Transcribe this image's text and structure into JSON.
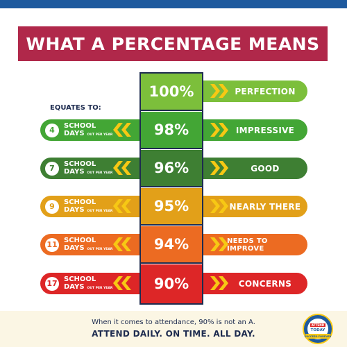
{
  "title": "WHAT A PERCENTAGE MEANS",
  "equates_label": "EQUATES TO:",
  "days_label_line1": "SCHOOL",
  "days_label_line2": "DAYS",
  "days_label_small": "OUT PER YEAR",
  "rows": [
    {
      "percent": "100%",
      "days": null,
      "outcome": "PERFECTION",
      "color": "#7cbf3b"
    },
    {
      "percent": "98%",
      "days": "4",
      "outcome": "IMPRESSIVE",
      "color": "#43a635"
    },
    {
      "percent": "96%",
      "days": "7",
      "outcome": "GOOD",
      "color": "#3e7f33"
    },
    {
      "percent": "95%",
      "days": "9",
      "outcome": "NEARLY THERE",
      "color": "#e2a019"
    },
    {
      "percent": "94%",
      "days": "11",
      "outcome": "NEEDS TO IMPROVE",
      "color": "#ec6b22"
    },
    {
      "percent": "90%",
      "days": "17",
      "outcome": "CONCERNS",
      "color": "#dd2627"
    }
  ],
  "chevron_color": "#f7c814",
  "footer": {
    "line1": "When it comes to attendance, 90% is not an A.",
    "line2": "ATTEND DAILY. ON TIME. ALL DAY."
  },
  "badge": {
    "top_text": "ATTEND",
    "middle_text": "TODAY",
    "bottom_text": "SUCCEED FOREVER"
  }
}
